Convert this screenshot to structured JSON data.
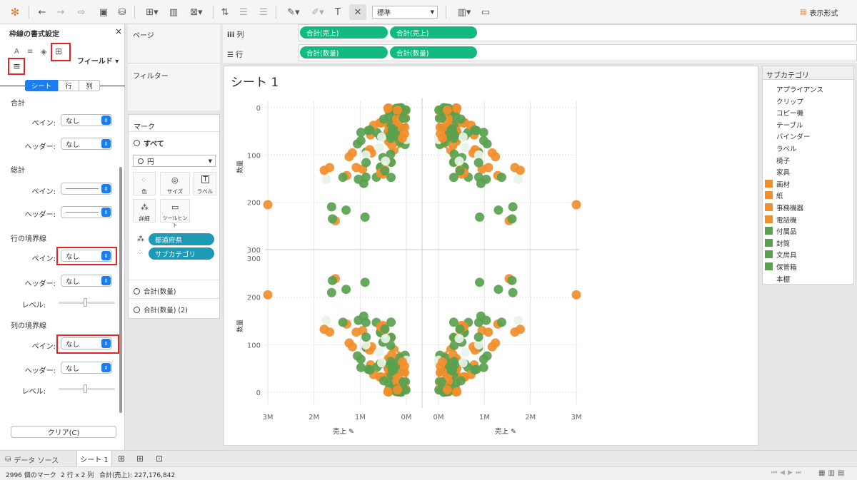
{
  "toolbar": {
    "mark_type": "標準",
    "show_me": "表示形式"
  },
  "format_pane": {
    "title": "枠線の書式設定",
    "field_dropdown": "フィールド",
    "tabs": [
      "シート",
      "行",
      "列"
    ],
    "sections": {
      "total": "合計",
      "grand_total": "総計",
      "row_divider": "行の境界線",
      "col_divider": "列の境界線"
    },
    "labels": {
      "pane": "ペイン:",
      "header": "ヘッダー:",
      "level": "レベル:"
    },
    "values": {
      "total_pane": "なし",
      "total_header": "なし",
      "row_pane": "なし",
      "row_header": "なし",
      "col_pane": "なし",
      "col_header": "なし"
    },
    "clear_button": "クリア(C)"
  },
  "pages": "ページ",
  "filters": "フィルター",
  "marks": {
    "title": "マーク",
    "all": "すべて",
    "mark_type": "円",
    "buttons": [
      "色",
      "サイズ",
      "ラベル",
      "詳細",
      "ツールヒント"
    ],
    "fields": [
      "都道府県",
      "サブカテゴリ"
    ],
    "measures": [
      "合計(数量)",
      "合計(数量) (2)"
    ]
  },
  "shelves": {
    "columns_label": "列",
    "rows_label": "行",
    "columns": [
      "合計(売上)",
      "合計(売上)"
    ],
    "rows": [
      "合計(数量)",
      "合計(数量)"
    ]
  },
  "sheet_title": "シート 1",
  "legend": {
    "title": "サブカテゴリ",
    "items": [
      {
        "name": "アプライアンス",
        "color": null
      },
      {
        "name": "クリップ",
        "color": null
      },
      {
        "name": "コピー機",
        "color": null
      },
      {
        "name": "テーブル",
        "color": null
      },
      {
        "name": "バインダー",
        "color": null
      },
      {
        "name": "ラベル",
        "color": null
      },
      {
        "name": "椅子",
        "color": null
      },
      {
        "name": "家具",
        "color": null
      },
      {
        "name": "画材",
        "color": "#f28e2b"
      },
      {
        "name": "紙",
        "color": "#f28e2b"
      },
      {
        "name": "事務機器",
        "color": "#f28e2b"
      },
      {
        "name": "電話機",
        "color": "#f28e2b"
      },
      {
        "name": "付属品",
        "color": "#59a14f"
      },
      {
        "name": "封筒",
        "color": "#59a14f"
      },
      {
        "name": "文房具",
        "color": "#59a14f"
      },
      {
        "name": "保管箱",
        "color": "#59a14f"
      },
      {
        "name": "本棚",
        "color": null
      }
    ]
  },
  "chart_data": {
    "type": "scatter",
    "x_axis_label": "売上",
    "y_axis_label": "数量",
    "x_ticks_left": [
      "3M",
      "2M",
      "1M",
      "0M"
    ],
    "x_ticks_right": [
      "0M",
      "1M",
      "2M",
      "3M"
    ],
    "y_ticks_top": [
      "0",
      "100",
      "200",
      "300"
    ],
    "y_ticks_bottom": [
      "300",
      "200",
      "100",
      "0"
    ],
    "x_range": [
      0,
      3000000
    ],
    "y_range": [
      0,
      300
    ],
    "colors": {
      "orange": "#f28e2b",
      "green": "#59a14f",
      "light": "#e8f3e6"
    }
  },
  "tabs": {
    "data_source": "データ ソース",
    "sheet": "シート 1"
  },
  "status": {
    "marks": "2996 個のマーク",
    "layout": "2 行 x 2 列",
    "sum": "合計(売上): 227,176,842"
  }
}
